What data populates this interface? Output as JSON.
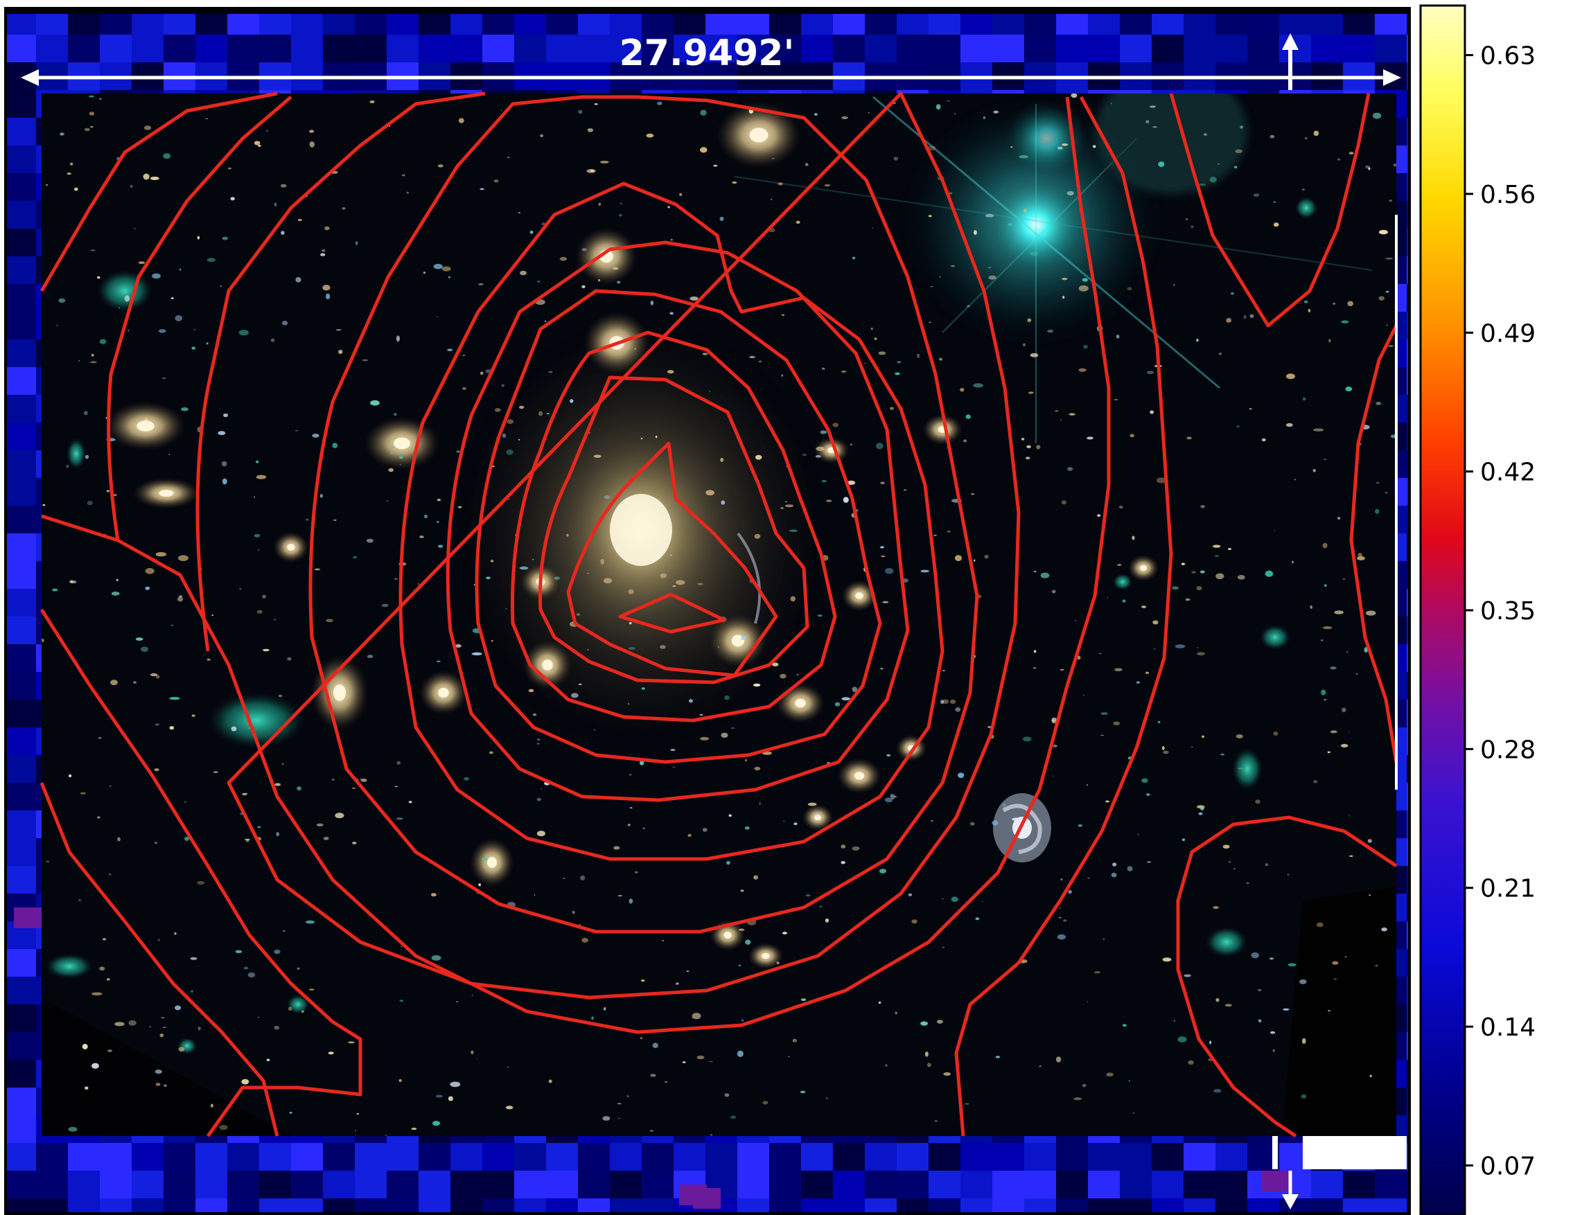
{
  "scale_bar": {
    "label": "27.9492'"
  },
  "colorbar": {
    "ticks": [
      "0.63",
      "0.56",
      "0.49",
      "0.42",
      "0.35",
      "0.28",
      "0.21",
      "0.14",
      "0.07"
    ],
    "tick_values": [
      0.63,
      0.56,
      0.49,
      0.42,
      0.35,
      0.28,
      0.21,
      0.14,
      0.07
    ],
    "range": [
      0.045,
      0.655
    ],
    "colormap": "plasma-like",
    "colors": [
      "#00005a",
      "#0a0ad8",
      "#5a12c8",
      "#a01078",
      "#e00828",
      "#ff3a00",
      "#ff8c00",
      "#ffd400",
      "#ffff80",
      "#ffffc8"
    ]
  },
  "contours": {
    "color": "#e8281e",
    "count": 10
  },
  "background_map": {
    "dominant_color": "#0a14a0"
  }
}
